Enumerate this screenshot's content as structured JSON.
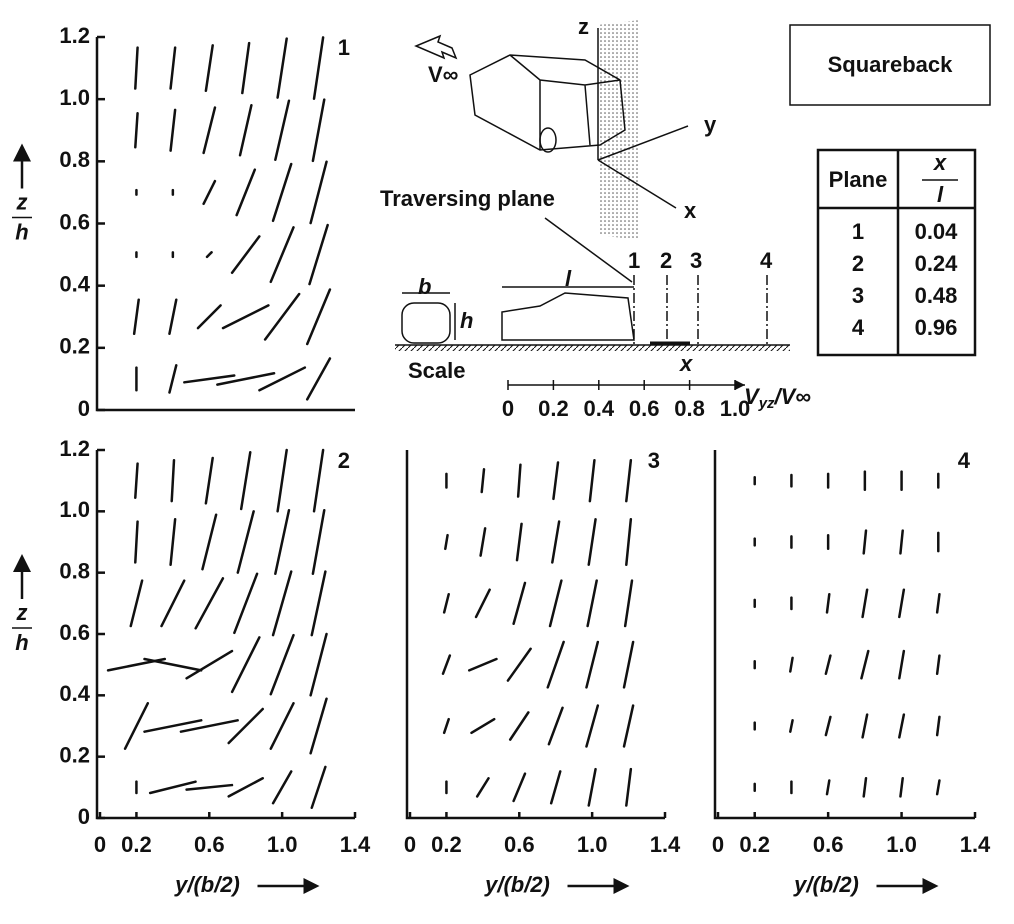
{
  "chart_data": [
    {
      "type": "quiver",
      "label": "1",
      "ylabel_num": "z",
      "ylabel_den": "h",
      "xlim": [
        0,
        1.4
      ],
      "ylim": [
        0,
        1.2
      ],
      "yticks": [
        0,
        0.2,
        0.4,
        0.6,
        0.8,
        {
          "value": 1,
          "label": "1.0"
        },
        1.2
      ],
      "x": [
        0.2,
        0.2,
        0.2,
        0.2,
        0.2,
        0.2,
        0.4,
        0.4,
        0.4,
        0.4,
        0.4,
        0.4,
        0.6,
        0.6,
        0.6,
        0.6,
        0.6,
        0.6,
        0.8,
        0.8,
        0.8,
        0.8,
        0.8,
        0.8,
        1,
        1,
        1,
        1,
        1,
        1,
        1.2,
        1.2,
        1.2,
        1.2,
        1.2,
        1.2
      ],
      "y": [
        0.1,
        0.3,
        0.5,
        0.7,
        0.9,
        1.1,
        0.1,
        0.3,
        0.5,
        0.7,
        0.9,
        1.1,
        0.1,
        0.3,
        0.5,
        0.7,
        0.9,
        1.1,
        0.1,
        0.3,
        0.5,
        0.7,
        0.9,
        1.1,
        0.1,
        0.3,
        0.5,
        0.7,
        0.9,
        1.1,
        0.1,
        0.3,
        0.5,
        0.7,
        0.9,
        1.1
      ],
      "u": [
        0,
        0.02,
        0,
        0,
        0.01,
        0.01,
        0.03,
        0.03,
        0,
        0,
        0.02,
        0.02,
        0.22,
        0.1,
        0.02,
        0.05,
        0.05,
        0.03,
        0.25,
        0.2,
        0.12,
        0.08,
        0.05,
        0.03,
        0.2,
        0.15,
        0.1,
        0.08,
        0.06,
        0.04,
        0.1,
        0.1,
        0.08,
        0.07,
        0.05,
        0.04
      ],
      "v": [
        0.1,
        0.15,
        0.02,
        0.02,
        0.15,
        0.18,
        0.12,
        0.15,
        0.02,
        0.02,
        0.18,
        0.18,
        0.03,
        0.1,
        0.02,
        0.1,
        0.2,
        0.2,
        0.05,
        0.1,
        0.16,
        0.2,
        0.22,
        0.22,
        0.1,
        0.2,
        0.24,
        0.25,
        0.26,
        0.26,
        0.18,
        0.24,
        0.26,
        0.27,
        0.27,
        0.27
      ]
    },
    {
      "type": "quiver",
      "label": "2",
      "ylabel_num": "z",
      "ylabel_den": "h",
      "xlabel": "y/(b/2)",
      "xlim": [
        0,
        1.4
      ],
      "ylim": [
        0,
        1.2
      ],
      "xticks": [
        0,
        0.2,
        0.6,
        {
          "value": 1,
          "label": "1.0"
        },
        1.4
      ],
      "yticks": [
        0,
        0.2,
        0.4,
        0.6,
        0.8,
        {
          "value": 1,
          "label": "1.0"
        },
        1.2
      ],
      "x": [
        0.2,
        0.2,
        0.2,
        0.2,
        0.2,
        0.2,
        0.4,
        0.4,
        0.4,
        0.4,
        0.4,
        0.4,
        0.6,
        0.6,
        0.6,
        0.6,
        0.6,
        0.6,
        0.8,
        0.8,
        0.8,
        0.8,
        0.8,
        0.8,
        1,
        1,
        1,
        1,
        1,
        1,
        1.2,
        1.2,
        1.2,
        1.2,
        1.2,
        1.2
      ],
      "y": [
        0.1,
        0.3,
        0.5,
        0.7,
        0.9,
        1.1,
        0.1,
        0.3,
        0.5,
        0.7,
        0.9,
        1.1,
        0.1,
        0.3,
        0.5,
        0.7,
        0.9,
        1.1,
        0.1,
        0.3,
        0.5,
        0.7,
        0.9,
        1.1,
        0.1,
        0.3,
        0.5,
        0.7,
        0.9,
        1.1,
        0.1,
        0.3,
        0.5,
        0.7,
        0.9,
        1.1
      ],
      "u": [
        0,
        0.1,
        0.25,
        0.05,
        0.01,
        0.01,
        0.2,
        0.25,
        0.25,
        0.1,
        0.02,
        0.01,
        0.2,
        0.25,
        0.2,
        0.12,
        0.06,
        0.03,
        0.15,
        0.15,
        0.12,
        0.1,
        0.07,
        0.04,
        0.08,
        0.1,
        0.1,
        0.08,
        0.06,
        0.04,
        0.06,
        0.07,
        0.07,
        0.06,
        0.05,
        0.04
      ],
      "v": [
        0.05,
        0.2,
        0.05,
        0.2,
        0.18,
        0.15,
        0.05,
        0.05,
        -0.05,
        0.2,
        0.2,
        0.18,
        0.02,
        0.05,
        0.12,
        0.22,
        0.24,
        0.2,
        0.08,
        0.15,
        0.24,
        0.26,
        0.27,
        0.25,
        0.14,
        0.2,
        0.26,
        0.28,
        0.28,
        0.27,
        0.18,
        0.24,
        0.27,
        0.28,
        0.28,
        0.27
      ]
    },
    {
      "type": "quiver",
      "label": "3",
      "xlabel": "y/(b/2)",
      "xlim": [
        0,
        1.4
      ],
      "ylim": [
        0,
        1.2
      ],
      "xticks": [
        0,
        0.2,
        0.6,
        {
          "value": 1,
          "label": "1.0"
        },
        1.4
      ],
      "x": [
        0.2,
        0.2,
        0.2,
        0.2,
        0.2,
        0.2,
        0.4,
        0.4,
        0.4,
        0.4,
        0.4,
        0.4,
        0.6,
        0.6,
        0.6,
        0.6,
        0.6,
        0.6,
        0.8,
        0.8,
        0.8,
        0.8,
        0.8,
        0.8,
        1,
        1,
        1,
        1,
        1,
        1,
        1.2,
        1.2,
        1.2,
        1.2,
        1.2,
        1.2
      ],
      "y": [
        0.1,
        0.3,
        0.5,
        0.7,
        0.9,
        1.1,
        0.1,
        0.3,
        0.5,
        0.7,
        0.9,
        1.1,
        0.1,
        0.3,
        0.5,
        0.7,
        0.9,
        1.1,
        0.1,
        0.3,
        0.5,
        0.7,
        0.9,
        1.1,
        0.1,
        0.3,
        0.5,
        0.7,
        0.9,
        1.1,
        0.1,
        0.3,
        0.5,
        0.7,
        0.9,
        1.1
      ],
      "u": [
        0,
        0.02,
        0.03,
        0.02,
        0.01,
        0,
        0.05,
        0.1,
        0.12,
        0.06,
        0.02,
        0.01,
        0.05,
        0.08,
        0.1,
        0.05,
        0.02,
        0.01,
        0.04,
        0.06,
        0.07,
        0.05,
        0.03,
        0.02,
        0.03,
        0.05,
        0.05,
        0.04,
        0.03,
        0.02,
        0.02,
        0.04,
        0.04,
        0.03,
        0.02,
        0.02
      ],
      "v": [
        0.05,
        0.06,
        0.08,
        0.08,
        0.06,
        0.06,
        0.08,
        0.06,
        0.05,
        0.12,
        0.12,
        0.1,
        0.12,
        0.12,
        0.14,
        0.18,
        0.16,
        0.14,
        0.14,
        0.16,
        0.2,
        0.2,
        0.18,
        0.16,
        0.16,
        0.18,
        0.2,
        0.2,
        0.2,
        0.18,
        0.16,
        0.18,
        0.2,
        0.2,
        0.2,
        0.18
      ]
    },
    {
      "type": "quiver",
      "label": "4",
      "xlabel": "y/(b/2)",
      "xlim": [
        0,
        1.4
      ],
      "ylim": [
        0,
        1.2
      ],
      "xticks": [
        0,
        0.2,
        0.6,
        {
          "value": 1,
          "label": "1.0"
        },
        1.4
      ],
      "x": [
        0.2,
        0.2,
        0.2,
        0.2,
        0.2,
        0.2,
        0.4,
        0.4,
        0.4,
        0.4,
        0.4,
        0.4,
        0.6,
        0.6,
        0.6,
        0.6,
        0.6,
        0.6,
        0.8,
        0.8,
        0.8,
        0.8,
        0.8,
        0.8,
        1,
        1,
        1,
        1,
        1,
        1,
        1.2,
        1.2,
        1.2,
        1.2,
        1.2,
        1.2
      ],
      "y": [
        0.1,
        0.3,
        0.5,
        0.7,
        0.9,
        1.1,
        0.1,
        0.3,
        0.5,
        0.7,
        0.9,
        1.1,
        0.1,
        0.3,
        0.5,
        0.7,
        0.9,
        1.1,
        0.1,
        0.3,
        0.5,
        0.7,
        0.9,
        1.1,
        0.1,
        0.3,
        0.5,
        0.7,
        0.9,
        1.1,
        0.1,
        0.3,
        0.5,
        0.7,
        0.9,
        1.1
      ],
      "u": [
        0,
        0,
        0,
        0,
        0,
        0,
        0,
        0.01,
        0.01,
        0,
        0,
        0,
        0.01,
        0.02,
        0.02,
        0.01,
        0,
        0,
        0.01,
        0.02,
        0.03,
        0.02,
        0.01,
        0,
        0.01,
        0.02,
        0.02,
        0.02,
        0.01,
        0,
        0.01,
        0.01,
        0.01,
        0.01,
        0,
        0
      ],
      "v": [
        0.03,
        0.03,
        0.03,
        0.03,
        0.03,
        0.03,
        0.05,
        0.05,
        0.06,
        0.05,
        0.05,
        0.05,
        0.06,
        0.08,
        0.08,
        0.08,
        0.06,
        0.06,
        0.08,
        0.1,
        0.12,
        0.12,
        0.1,
        0.08,
        0.08,
        0.1,
        0.12,
        0.12,
        0.1,
        0.08,
        0.06,
        0.08,
        0.08,
        0.08,
        0.08,
        0.06
      ]
    }
  ],
  "diagram": {
    "flow_label": "V∞",
    "axis_z": "z",
    "axis_y": "y",
    "axis_x": "x",
    "traversing_plane": "Traversing plane",
    "plane_marks": [
      "1",
      "2",
      "3",
      "4"
    ],
    "width_label": "b",
    "height_label": "h",
    "length_label": "l",
    "scale_text": "Scale",
    "ground_x": "x",
    "speed_scale": {
      "label_main": "V",
      "label_sub": "yz",
      "label_tail": "/V∞",
      "xlim": [
        0,
        1
      ],
      "xticks": [
        0,
        0.2,
        0.4,
        0.6,
        0.8,
        {
          "value": 1,
          "label": "1.0"
        }
      ]
    },
    "name": "Squareback"
  },
  "table": {
    "header": "Plane",
    "x_num": "x",
    "x_den": "l",
    "rows": [
      [
        "1",
        "0.04"
      ],
      [
        "2",
        "0.24"
      ],
      [
        "3",
        "0.48"
      ],
      [
        "4",
        "0.96"
      ]
    ]
  }
}
